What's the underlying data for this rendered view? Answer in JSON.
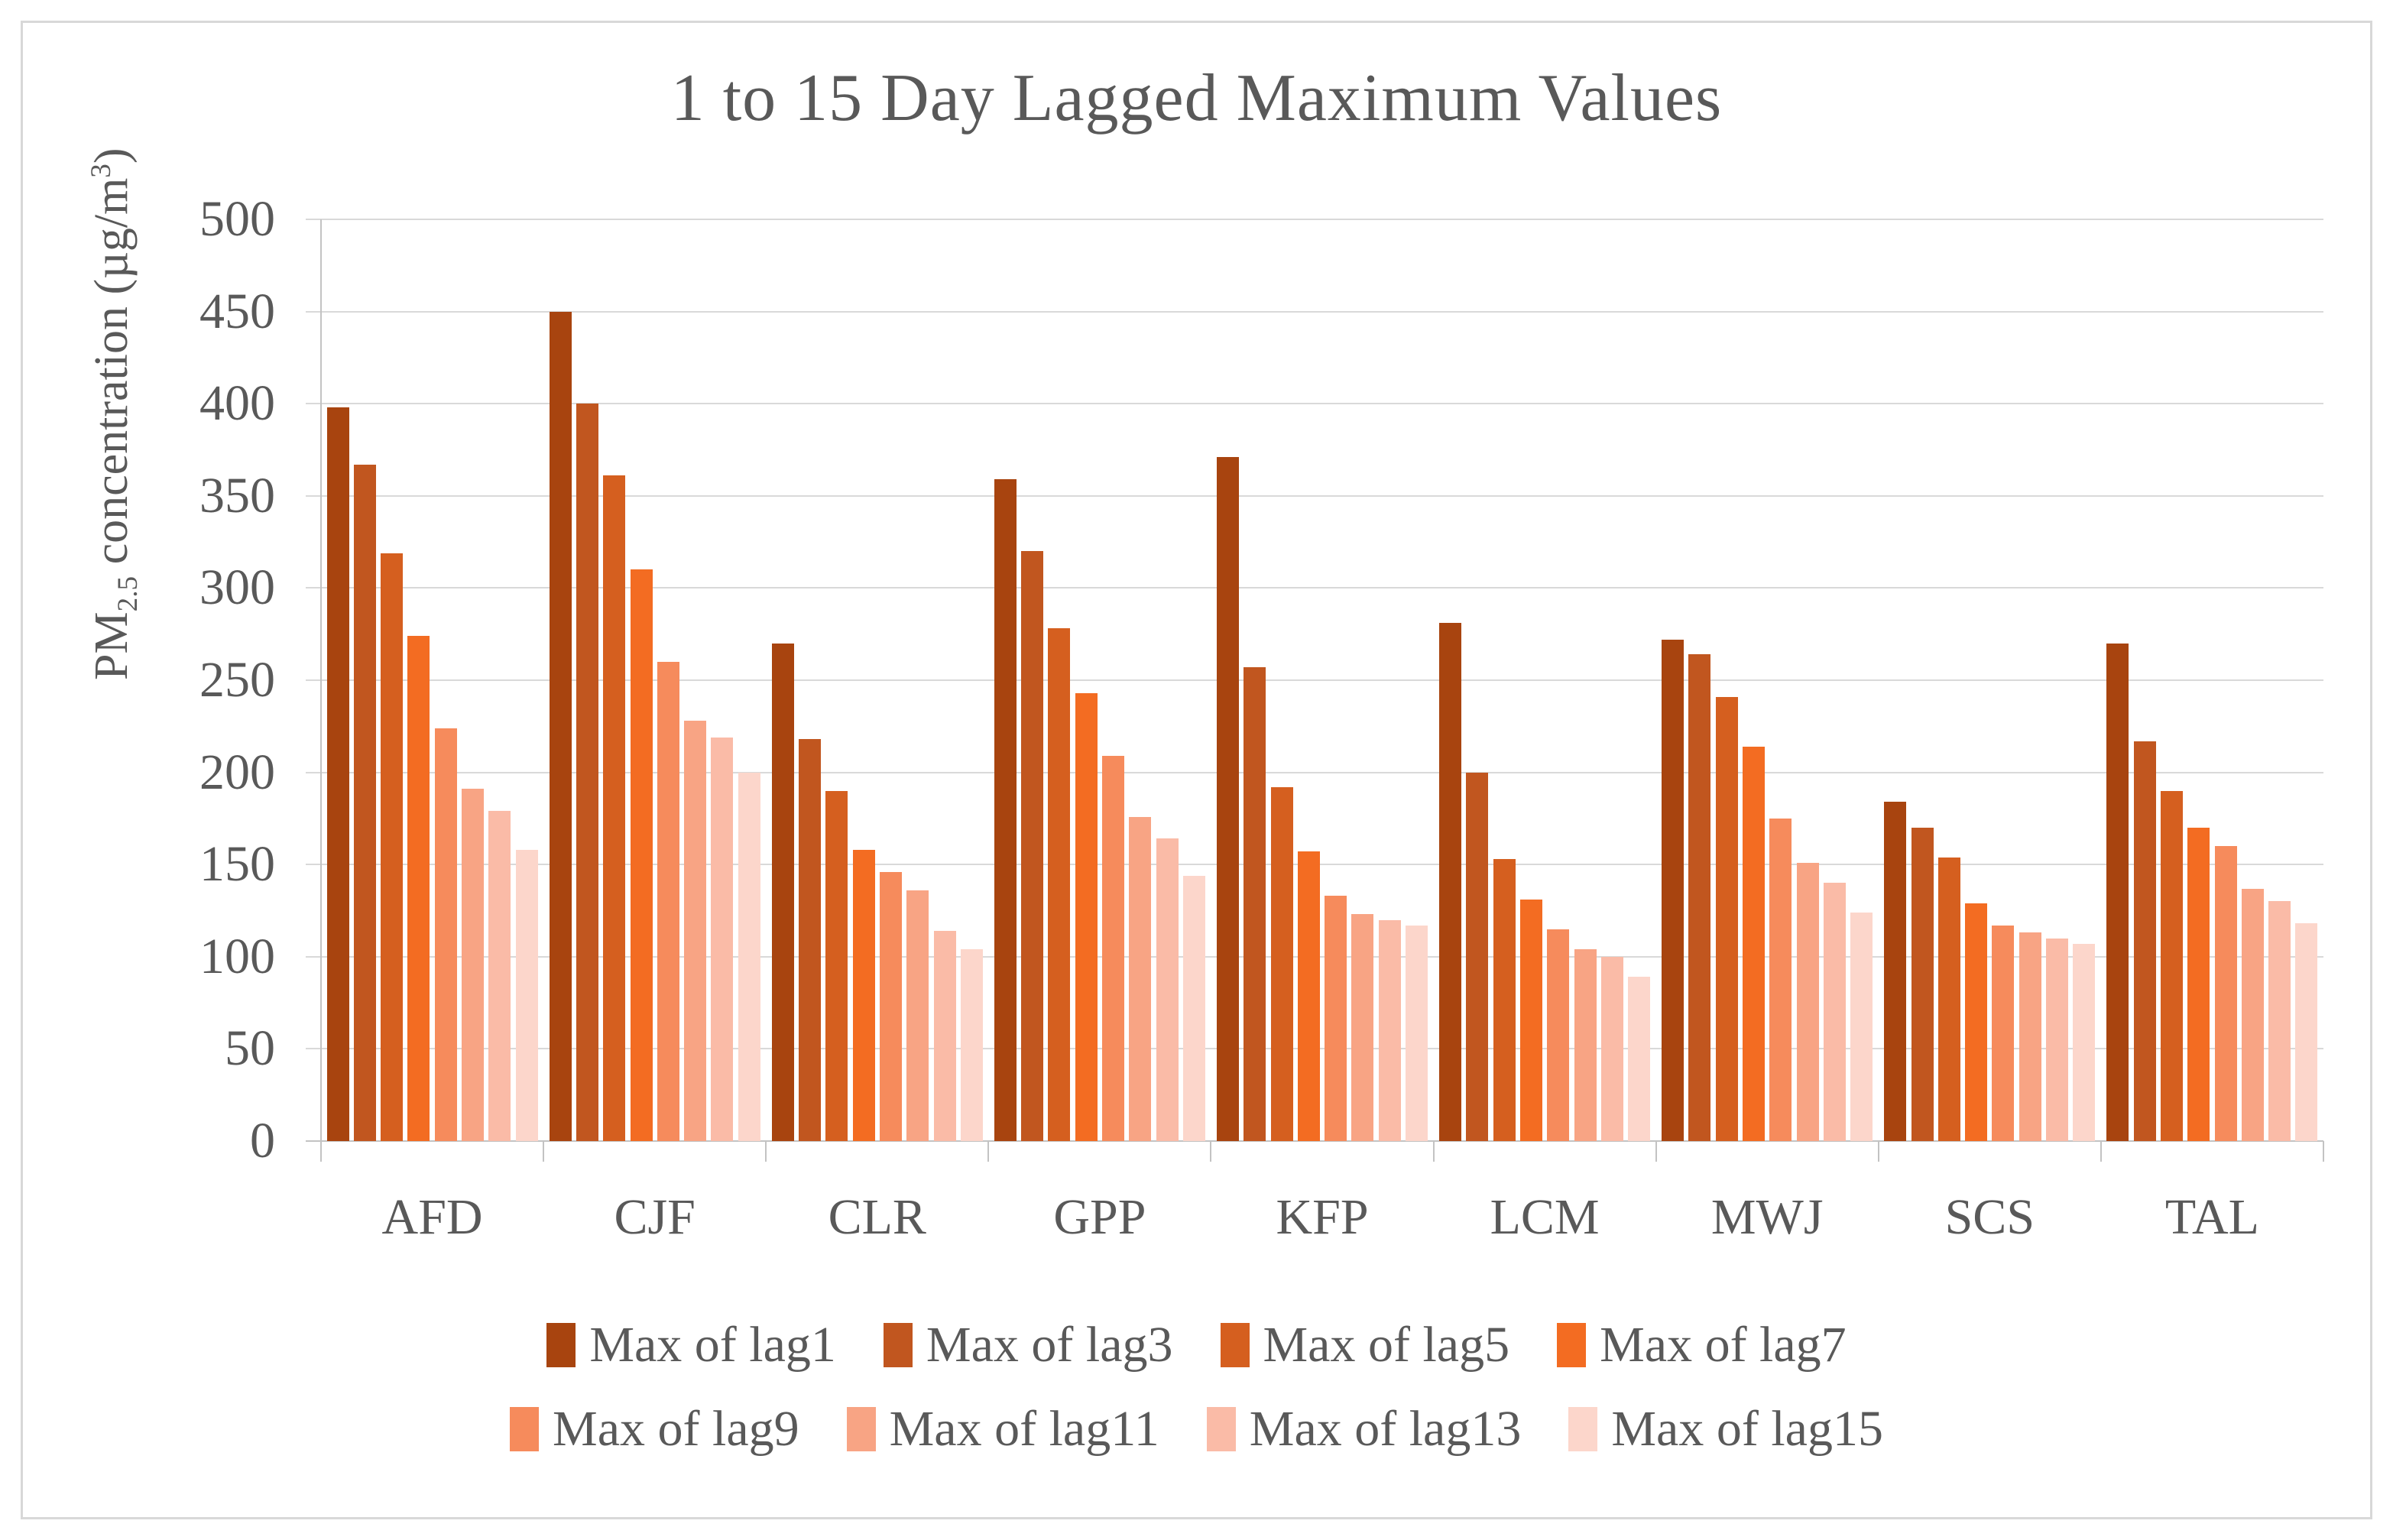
{
  "colors": {
    "text": "#595959",
    "gridline": "#d9d9d9",
    "axis": "#c3c3c3",
    "frame_border": "#d8d8d8",
    "background": "#ffffff"
  },
  "chart_data": {
    "type": "bar",
    "title": "1 to 15 Day Lagged Maximum Values",
    "xlabel": "",
    "ylabel": "PM2.5 concentration (µg/m³)",
    "ylabel_parts": {
      "prefix": "PM",
      "sub": "2.5",
      "mid": " concentration (µg/m",
      "sup": "3",
      "suffix": ")"
    },
    "ylim": [
      0,
      500
    ],
    "yticks": [
      0,
      50,
      100,
      150,
      200,
      250,
      300,
      350,
      400,
      450,
      500
    ],
    "grid": "horizontal gridlines every 50, light gray",
    "legend_position": "bottom, two centered rows of four",
    "categories": [
      "AFD",
      "CJF",
      "CLR",
      "GPP",
      "KFP",
      "LCM",
      "MWJ",
      "SCS",
      "TAL"
    ],
    "series": [
      {
        "name": "Max of lag1",
        "color": "#a8440f",
        "values": [
          398,
          450,
          270,
          359,
          371,
          281,
          272,
          184,
          270
        ]
      },
      {
        "name": "Max of lag3",
        "color": "#c1561f",
        "values": [
          367,
          400,
          218,
          320,
          257,
          200,
          264,
          170,
          217
        ]
      },
      {
        "name": "Max of lag5",
        "color": "#d55f1f",
        "values": [
          319,
          361,
          190,
          278,
          192,
          153,
          241,
          154,
          190
        ]
      },
      {
        "name": "Max of lag7",
        "color": "#f36c22",
        "values": [
          274,
          310,
          158,
          243,
          157,
          131,
          214,
          129,
          170
        ]
      },
      {
        "name": "Max of lag9",
        "color": "#f68b5c",
        "values": [
          224,
          260,
          146,
          209,
          133,
          115,
          175,
          117,
          160
        ]
      },
      {
        "name": "Max of lag11",
        "color": "#f8a484",
        "values": [
          191,
          228,
          136,
          176,
          123,
          104,
          151,
          113,
          137
        ]
      },
      {
        "name": "Max of lag13",
        "color": "#fabba7",
        "values": [
          179,
          219,
          114,
          164,
          120,
          100,
          140,
          110,
          130
        ]
      },
      {
        "name": "Max of lag15",
        "color": "#fcd6cb",
        "values": [
          158,
          200,
          104,
          144,
          117,
          89,
          124,
          107,
          118
        ]
      }
    ],
    "legend_rows": [
      [
        0,
        1,
        2,
        3
      ],
      [
        4,
        5,
        6,
        7
      ]
    ]
  }
}
